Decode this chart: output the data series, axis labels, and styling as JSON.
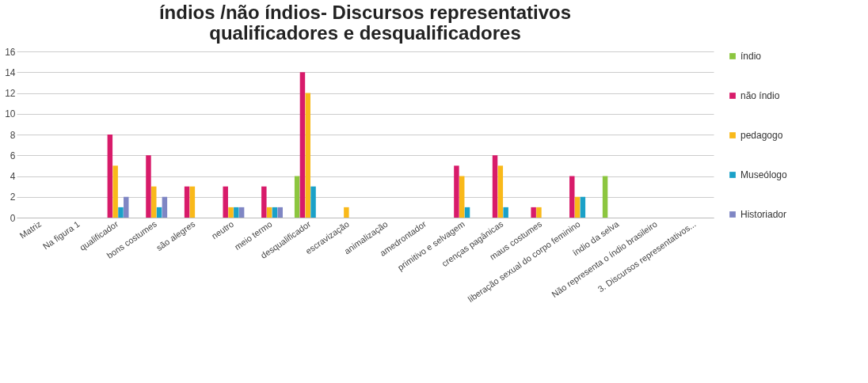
{
  "chart_data": {
    "type": "bar",
    "title": [
      "índios /não índios- Discursos representativos",
      "qualificadores e desqualificadores"
    ],
    "categories": [
      "Matriz",
      "Na figura 1",
      "qualificador",
      "bons costumes",
      "são alegres",
      "neutro",
      "meio termo",
      "desqualificador",
      "escravização",
      "animalização",
      "amedrontador",
      "primitivo e selvagem",
      "crenças pagânicas",
      "maus costumes",
      "liberação sexual do corpo feminino",
      "índio da selva",
      "Não representa o índio brasileiro",
      "3. Discursos representativos..."
    ],
    "series": [
      {
        "name": "índio",
        "color": "#8cc63f",
        "values": [
          null,
          null,
          null,
          null,
          null,
          null,
          null,
          4,
          null,
          null,
          null,
          null,
          null,
          null,
          null,
          4,
          null,
          null
        ]
      },
      {
        "name": "não índio",
        "color": "#d81b6a",
        "values": [
          null,
          null,
          8,
          6,
          3,
          3,
          3,
          14,
          null,
          null,
          null,
          5,
          6,
          1,
          4,
          null,
          null,
          null
        ]
      },
      {
        "name": "pedagogo",
        "color": "#f9b91a",
        "values": [
          null,
          null,
          5,
          3,
          3,
          1,
          1,
          12,
          1,
          null,
          null,
          4,
          5,
          1,
          2,
          null,
          null,
          null
        ]
      },
      {
        "name": "Museólogo",
        "color": "#1ba1c8",
        "values": [
          null,
          null,
          1,
          1,
          null,
          1,
          1,
          3,
          null,
          null,
          null,
          1,
          1,
          null,
          2,
          null,
          null,
          null
        ]
      },
      {
        "name": "Historiador",
        "color": "#7f86c4",
        "values": [
          null,
          null,
          2,
          2,
          null,
          1,
          1,
          null,
          null,
          null,
          null,
          null,
          null,
          null,
          null,
          null,
          null,
          null
        ]
      }
    ],
    "ylim": [
      0,
      16
    ],
    "yticks": [
      0,
      2,
      4,
      6,
      8,
      10,
      12,
      14,
      16
    ],
    "grid": "y",
    "legend": "right"
  }
}
